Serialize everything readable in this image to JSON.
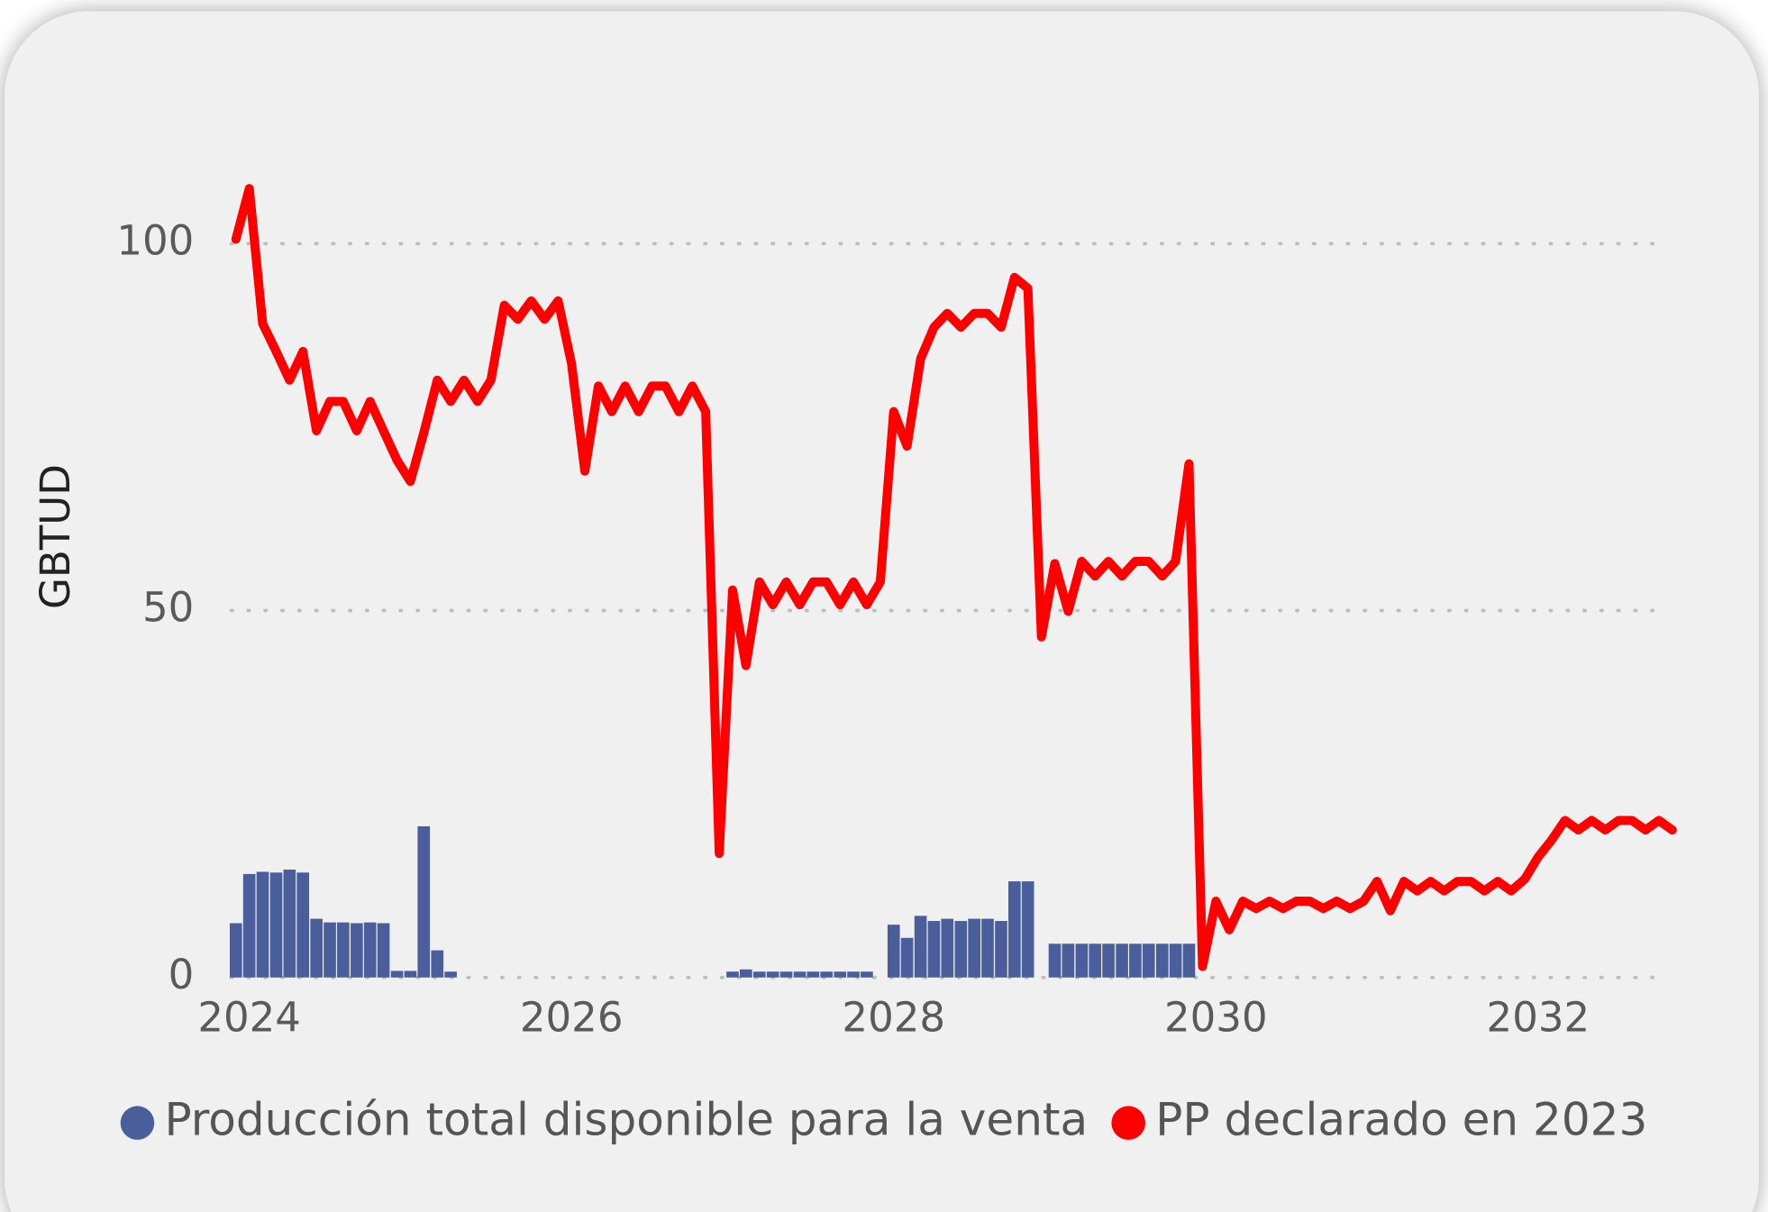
{
  "chart_data": {
    "type": "combo",
    "y_label": "GBTUD",
    "legend": "bottom",
    "grid": true,
    "x": [
      2023.917,
      2024,
      2024.083,
      2024.167,
      2024.25,
      2024.333,
      2024.417,
      2024.5,
      2024.583,
      2024.667,
      2024.75,
      2024.833,
      2024.917,
      2025,
      2025.083,
      2025.167,
      2025.25,
      2025.333,
      2025.417,
      2025.5,
      2025.583,
      2025.667,
      2025.75,
      2025.833,
      2025.917,
      2026,
      2026.083,
      2026.167,
      2026.25,
      2026.333,
      2026.417,
      2026.5,
      2026.583,
      2026.667,
      2026.75,
      2026.833,
      2026.917,
      2027,
      2027.083,
      2027.167,
      2027.25,
      2027.333,
      2027.417,
      2027.5,
      2027.583,
      2027.667,
      2027.75,
      2027.833,
      2027.917,
      2028,
      2028.083,
      2028.167,
      2028.25,
      2028.333,
      2028.417,
      2028.5,
      2028.583,
      2028.667,
      2028.75,
      2028.833,
      2028.917,
      2029,
      2029.083,
      2029.167,
      2029.25,
      2029.333,
      2029.417,
      2029.5,
      2029.583,
      2029.667,
      2029.75,
      2029.833,
      2029.917,
      2030,
      2030.083,
      2030.167,
      2030.25,
      2030.333,
      2030.417,
      2030.5,
      2030.583,
      2030.667,
      2030.75,
      2030.833,
      2030.917,
      2031,
      2031.083,
      2031.167,
      2031.25,
      2031.333,
      2031.417,
      2031.5,
      2031.583,
      2031.667,
      2031.75,
      2031.833,
      2031.917,
      2032,
      2032.083,
      2032.167,
      2032.25,
      2032.333,
      2032.417,
      2032.5,
      2032.583,
      2032.667,
      2032.75,
      2032.833
    ],
    "xlim": [
      2023.85,
      2032.95
    ],
    "xticks": [
      2024,
      2026,
      2028,
      2030,
      2032
    ],
    "ylim": [
      0,
      110
    ],
    "yticks": [
      0,
      50,
      100
    ],
    "series": [
      {
        "name": "Producción total disponible para la venta",
        "color": "#4a5e9b",
        "type": "bar",
        "values": [
          7.4,
          14.1,
          14.4,
          14.3,
          14.7,
          14.3,
          8,
          7.5,
          7.5,
          7.4,
          7.5,
          7.4,
          0.9,
          0.9,
          20.6,
          3.7,
          0.8,
          null,
          null,
          null,
          null,
          null,
          null,
          null,
          null,
          null,
          null,
          null,
          null,
          null,
          null,
          null,
          null,
          null,
          null,
          null,
          null,
          0.8,
          1.1,
          0.8,
          0.8,
          0.8,
          0.8,
          0.8,
          0.8,
          0.8,
          0.8,
          0.8,
          null,
          7.2,
          5.4,
          8.4,
          7.7,
          8,
          7.7,
          8,
          8,
          7.7,
          13.1,
          13.1,
          null,
          4.6,
          4.6,
          4.6,
          4.6,
          4.6,
          4.6,
          4.6,
          4.6,
          4.6,
          4.6,
          4.6,
          null,
          null,
          null,
          null,
          null,
          null,
          null,
          null,
          null,
          null,
          null,
          null,
          null,
          null,
          null,
          null,
          null,
          null,
          null,
          null,
          null,
          null,
          null,
          null,
          null,
          null,
          null,
          null,
          null,
          null,
          null,
          null,
          null,
          null,
          null,
          null
        ]
      },
      {
        "name": "PP declarado en 2023",
        "color": "#ff0000",
        "type": "line",
        "values": [
          100.6,
          107.5,
          89.1,
          85.3,
          81.4,
          85.3,
          74.5,
          78.5,
          78.5,
          74.5,
          78.5,
          74.5,
          70.5,
          67.6,
          74.2,
          81.4,
          78.5,
          81.4,
          78.5,
          81.4,
          91.6,
          89.7,
          92.2,
          89.7,
          92.2,
          83.7,
          69,
          80.6,
          77.1,
          80.6,
          77.1,
          80.6,
          80.6,
          77.1,
          80.6,
          77.1,
          16.9,
          52.8,
          42.5,
          53.9,
          50.8,
          53.9,
          50.8,
          53.9,
          53.9,
          50.8,
          53.9,
          50.8,
          53.9,
          77.1,
          72.4,
          84.3,
          88.6,
          90.5,
          88.6,
          90.5,
          90.5,
          88.6,
          95.4,
          93.9,
          46.4,
          56.4,
          49.9,
          56.7,
          54.7,
          56.7,
          54.7,
          56.7,
          56.7,
          54.7,
          56.7,
          70,
          1.5,
          10.4,
          6.5,
          10.4,
          9.4,
          10.4,
          9.4,
          10.4,
          10.4,
          9.4,
          10.4,
          9.4,
          10.4,
          13.1,
          9.1,
          13.1,
          11.8,
          13.1,
          11.8,
          13.1,
          13.1,
          11.8,
          13.1,
          11.8,
          13.4,
          16.4,
          18.7,
          21.4,
          20.1,
          21.4,
          20.1,
          21.4,
          21.4,
          20.1,
          21.4,
          20.1
        ]
      }
    ]
  }
}
